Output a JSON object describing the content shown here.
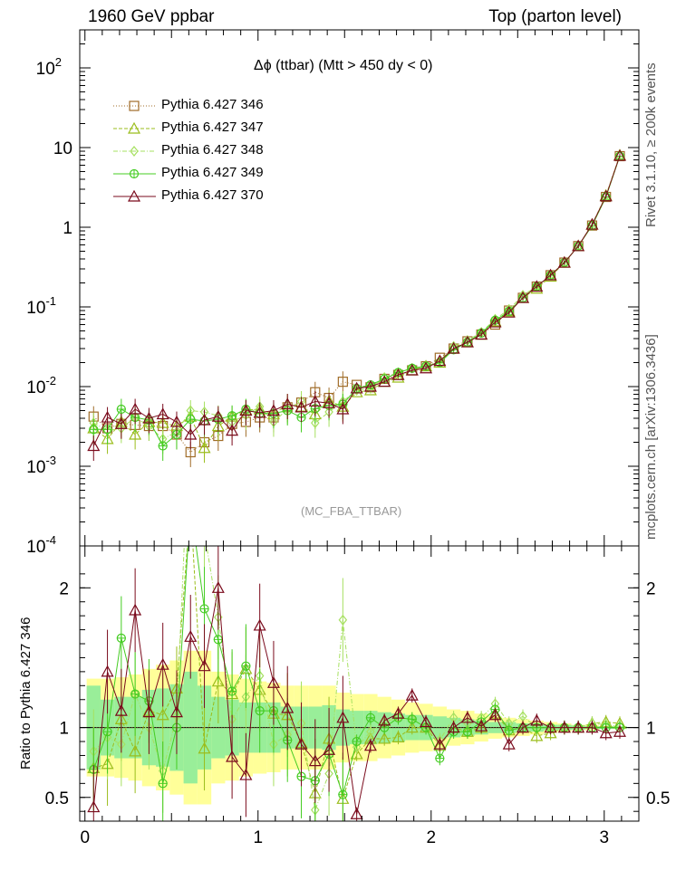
{
  "header": {
    "left": "1960 GeV ppbar",
    "right": "Top (parton level)"
  },
  "side_labels": {
    "rivet": "Rivet 3.1.10, ≥ 200k events",
    "mcplots": "mcplots.cern.ch [arXiv:1306.3436]"
  },
  "tag": "(MC_FBA_TTBAR)",
  "chart_data": [
    {
      "type": "line",
      "panel": "main",
      "title": "Δϕ (ttbar) (Mtt > 450 dy < 0)",
      "xlabel": "",
      "ylabel": "",
      "yscale": "log",
      "ylim": [
        0.0001,
        300
      ],
      "xlim": [
        -0.03,
        3.2
      ],
      "y_ticks": [
        "10^-4",
        "10^-3",
        "10^-2",
        "10^-1",
        "1",
        "10",
        "10^2"
      ],
      "x": [
        0.05,
        0.13,
        0.21,
        0.29,
        0.37,
        0.45,
        0.53,
        0.61,
        0.69,
        0.77,
        0.85,
        0.93,
        1.01,
        1.09,
        1.17,
        1.25,
        1.33,
        1.41,
        1.49,
        1.57,
        1.65,
        1.73,
        1.81,
        1.89,
        1.97,
        2.05,
        2.13,
        2.21,
        2.29,
        2.37,
        2.45,
        2.53,
        2.61,
        2.69,
        2.77,
        2.85,
        2.93,
        3.01,
        3.09
      ],
      "series": [
        {
          "name": "Pythia 6.427 346",
          "color": "#a06c28",
          "marker": "square",
          "values": [
            0.0042,
            0.003,
            0.0034,
            0.0033,
            0.0032,
            0.0032,
            0.0025,
            0.0015,
            0.002,
            0.0024,
            0.0034,
            0.0036,
            0.0041,
            0.0041,
            0.0055,
            0.0063,
            0.0085,
            0.0072,
            0.0115,
            0.0105,
            0.0098,
            0.0125,
            0.014,
            0.016,
            0.018,
            0.023,
            0.03,
            0.037,
            0.045,
            0.06,
            0.09,
            0.13,
            0.18,
            0.25,
            0.36,
            0.58,
            1.05,
            2.4,
            7.8
          ]
        },
        {
          "name": "Pythia 6.427 347",
          "color": "#9bbd1c",
          "marker": "triangle",
          "values": [
            0.003,
            0.0022,
            0.0036,
            0.0025,
            0.0036,
            0.0035,
            0.0032,
            0.0042,
            0.0017,
            0.0032,
            0.0042,
            0.0051,
            0.0052,
            0.0045,
            0.006,
            0.0056,
            0.0045,
            0.0066,
            0.0056,
            0.0085,
            0.009,
            0.0115,
            0.013,
            0.016,
            0.018,
            0.02,
            0.03,
            0.036,
            0.045,
            0.066,
            0.088,
            0.13,
            0.17,
            0.24,
            0.36,
            0.58,
            1.08,
            2.5,
            8.0
          ]
        },
        {
          "name": "Pythia 6.427 348",
          "color": "#a6e060",
          "marker": "diamond",
          "values": [
            0.0035,
            0.0028,
            0.003,
            0.0041,
            0.0032,
            0.0022,
            0.0027,
            0.005,
            0.0048,
            0.0043,
            0.0036,
            0.0044,
            0.0056,
            0.0036,
            0.0052,
            0.0065,
            0.0035,
            0.0048,
            0.0065,
            0.009,
            0.0095,
            0.013,
            0.015,
            0.017,
            0.018,
            0.021,
            0.032,
            0.038,
            0.048,
            0.07,
            0.093,
            0.14,
            0.18,
            0.25,
            0.36,
            0.58,
            1.08,
            2.45,
            7.9
          ]
        },
        {
          "name": "Pythia 6.427 349",
          "color": "#44cc22",
          "marker": "cross",
          "values": [
            0.0029,
            0.0029,
            0.0052,
            0.0041,
            0.0038,
            0.0018,
            0.0025,
            0.0039,
            0.0037,
            0.0039,
            0.0043,
            0.0052,
            0.0046,
            0.0046,
            0.005,
            0.0041,
            0.0053,
            0.0058,
            0.006,
            0.0095,
            0.0105,
            0.0125,
            0.015,
            0.017,
            0.018,
            0.02,
            0.029,
            0.036,
            0.047,
            0.068,
            0.088,
            0.13,
            0.18,
            0.25,
            0.36,
            0.58,
            1.05,
            2.4,
            7.8
          ]
        },
        {
          "name": "Pythia 6.427 370",
          "color": "#7a0a1c",
          "marker": "triangle",
          "values": [
            0.0018,
            0.0041,
            0.0034,
            0.0052,
            0.004,
            0.0045,
            0.0036,
            0.0025,
            0.0038,
            0.0042,
            0.0028,
            0.005,
            0.0047,
            0.005,
            0.006,
            0.0055,
            0.0065,
            0.0062,
            0.0052,
            0.0095,
            0.01,
            0.0115,
            0.014,
            0.016,
            0.017,
            0.021,
            0.03,
            0.036,
            0.045,
            0.064,
            0.085,
            0.13,
            0.18,
            0.25,
            0.36,
            0.58,
            1.08,
            2.45,
            7.9
          ]
        }
      ]
    },
    {
      "type": "line",
      "panel": "ratio",
      "xlabel": "",
      "ylabel": "Ratio to Pythia 6.427 346",
      "ylim": [
        0.33,
        2.3
      ],
      "xlim": [
        -0.03,
        3.2
      ],
      "y_ticks": [
        0.5,
        1,
        2
      ],
      "x_ticks": [
        0,
        1,
        2,
        3
      ],
      "bands": {
        "yellow_half_width": [
          0.35,
          0.35,
          0.36,
          0.38,
          0.42,
          0.45,
          0.48,
          0.55,
          0.55,
          0.4,
          0.38,
          0.35,
          0.33,
          0.32,
          0.3,
          0.3,
          0.3,
          0.3,
          0.25,
          0.24,
          0.24,
          0.22,
          0.2,
          0.18,
          0.17,
          0.15,
          0.13,
          0.12,
          0.1,
          0.08,
          0.07,
          0.06,
          0.05,
          0.04,
          0.03,
          0.02,
          0.02,
          0.01,
          0.01
        ],
        "green_half_width": [
          0.3,
          0.2,
          0.22,
          0.22,
          0.27,
          0.28,
          0.31,
          0.4,
          0.3,
          0.22,
          0.2,
          0.18,
          0.18,
          0.18,
          0.15,
          0.15,
          0.15,
          0.16,
          0.13,
          0.12,
          0.12,
          0.11,
          0.1,
          0.09,
          0.09,
          0.08,
          0.07,
          0.06,
          0.05,
          0.04,
          0.04,
          0.03,
          0.03,
          0.02,
          0.02,
          0.015,
          0.01,
          0.01,
          0.01
        ]
      },
      "series": [
        {
          "name": "Pythia 6.427 347",
          "color": "#9bbd1c",
          "marker": "triangle",
          "values": [
            0.71,
            0.74,
            1.06,
            0.83,
            1.12,
            1.09,
            1.28,
            2.6,
            0.85,
            1.33,
            1.24,
            1.42,
            1.27,
            1.1,
            1.09,
            0.89,
            0.53,
            0.92,
            0.49,
            0.81,
            0.92,
            0.92,
            0.93,
            1.0,
            1.0,
            0.87,
            1.0,
            0.97,
            1.0,
            1.1,
            0.98,
            1.0,
            0.94,
            0.96,
            1.0,
            1.0,
            1.03,
            1.04,
            1.03
          ]
        },
        {
          "name": "Pythia 6.427 348",
          "color": "#a6e060",
          "marker": "diamond",
          "values": [
            0.83,
            0.93,
            0.88,
            1.24,
            1.0,
            0.69,
            1.08,
            3.33,
            2.4,
            1.79,
            1.06,
            1.22,
            1.37,
            0.88,
            0.95,
            1.03,
            0.41,
            0.67,
            1.77,
            0.86,
            0.97,
            1.04,
            1.07,
            1.06,
            1.0,
            0.91,
            1.07,
            1.03,
            1.07,
            1.17,
            1.03,
            1.08,
            1.0,
            1.0,
            1.0,
            1.0,
            1.03,
            1.02,
            1.01
          ]
        },
        {
          "name": "Pythia 6.427 349",
          "color": "#44cc22",
          "marker": "cross",
          "values": [
            0.7,
            0.97,
            1.64,
            1.24,
            1.19,
            0.6,
            1.0,
            2.6,
            1.85,
            1.63,
            1.26,
            1.44,
            1.12,
            1.12,
            0.91,
            0.65,
            0.62,
            0.81,
            0.52,
            0.9,
            1.07,
            1.0,
            1.07,
            1.06,
            1.0,
            0.78,
            0.97,
            0.97,
            1.04,
            1.13,
            0.98,
            1.0,
            1.0,
            1.0,
            1.0,
            1.0,
            1.0,
            1.0,
            1.0
          ]
        },
        {
          "name": "Pythia 6.427 370",
          "color": "#7a0a1c",
          "marker": "triangle",
          "values": [
            0.43,
            1.4,
            1.12,
            1.84,
            1.11,
            1.45,
            1.11,
            1.65,
            1.44,
            2.0,
            0.79,
            0.66,
            1.73,
            1.32,
            1.14,
            0.88,
            0.76,
            0.84,
            1.07,
            0.38,
            0.87,
            1.05,
            1.1,
            1.23,
            1.04,
            0.88,
            1.0,
            1.07,
            1.01,
            1.09,
            0.88,
            1.0,
            1.05,
            1.0,
            1.0,
            1.0,
            1.0,
            0.96,
            0.97
          ]
        }
      ]
    }
  ]
}
